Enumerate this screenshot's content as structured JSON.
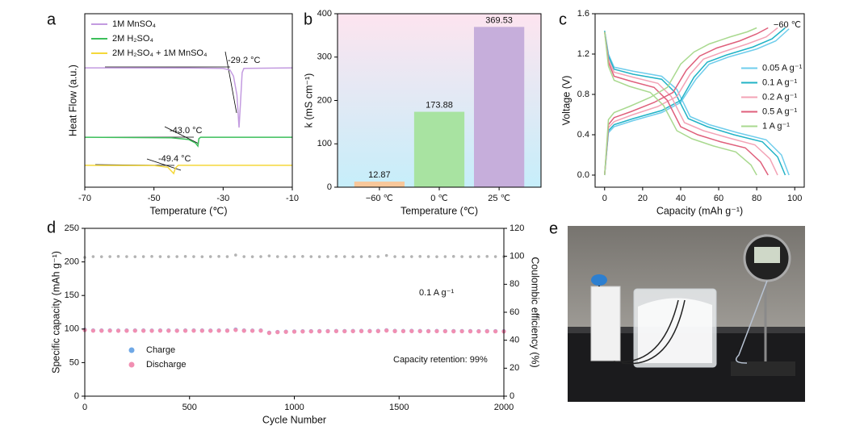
{
  "chart_data": [
    {
      "panel": "a",
      "type": "line",
      "xlabel": "Temperature (℃)",
      "ylabel": "Heat Flow (a.u.)",
      "xlim": [
        -70,
        -10
      ],
      "xticks": [
        -70,
        -50,
        -30,
        -10
      ],
      "ylim": [
        0,
        10
      ],
      "legend": "upper left",
      "annotations": [
        "-29.2 °C",
        "-43.0 °C",
        "-49.4 °C"
      ],
      "series": [
        {
          "name": "1M MnSO₄",
          "color": "#c39be0",
          "x": [
            -70,
            -40,
            -30,
            -28,
            -27,
            -26,
            -25.4,
            -25,
            -24.5,
            -24,
            -10
          ],
          "values": [
            6.88,
            6.87,
            6.85,
            6.75,
            6.4,
            5.3,
            3.44,
            4.8,
            6.6,
            6.85,
            6.88
          ]
        },
        {
          "name": "2M H₂SO₄",
          "color": "#3cbf5a",
          "x": [
            -70,
            -45,
            -40,
            -38,
            -37.3,
            -37,
            -36.5,
            -10
          ],
          "values": [
            2.88,
            2.85,
            2.75,
            2.55,
            2.37,
            2.8,
            2.88,
            2.88
          ]
        },
        {
          "name": "2M H₂SO₄ + 1M MnSO₄",
          "color": "#f5d83a",
          "x": [
            -70,
            -50,
            -46,
            -44.3,
            -43.8,
            -43,
            -10
          ],
          "values": [
            1.26,
            1.25,
            1.15,
            0.79,
            1.1,
            1.26,
            1.26
          ]
        }
      ]
    },
    {
      "panel": "b",
      "type": "bar",
      "xlabel": "Temperature (℃)",
      "ylabel": "k (mS cm⁻¹)",
      "categories": [
        "−60 ℃",
        "0 ℃",
        "25 ℃"
      ],
      "values": [
        12.87,
        173.88,
        369.53
      ],
      "colors": [
        "#f8c79a",
        "#a8e3a1",
        "#c6aedb"
      ],
      "ylim": [
        0,
        400
      ],
      "yticks": [
        0,
        100,
        200,
        300,
        400
      ]
    },
    {
      "panel": "c",
      "type": "line",
      "xlabel": "Capacity (mAh g⁻¹)",
      "ylabel": "Voltage (V)",
      "xlim": [
        -5,
        105
      ],
      "xticks": [
        0,
        20,
        40,
        60,
        80,
        100
      ],
      "ylim": [
        -0.12,
        1.6
      ],
      "yticks": [
        {
          "value": 0,
          "label": "0.0"
        },
        0.4,
        0.8,
        1.2,
        1.6
      ],
      "legend": "center right",
      "annotations": [
        "−60 ℃"
      ],
      "series": [
        {
          "name": "0.05 A g⁻¹",
          "color": "#6fcdec",
          "x": [
            0,
            2,
            5,
            15,
            30,
            40,
            48,
            55,
            65,
            80,
            90,
            97
          ],
          "values": [
            0.0,
            0.42,
            0.48,
            0.54,
            0.62,
            0.72,
            0.95,
            1.1,
            1.17,
            1.25,
            1.33,
            1.45
          ],
          "discharge": {
            "x": [
              0,
              2,
              5,
              15,
              30,
              38,
              45,
              55,
              70,
              85,
              93,
              97
            ],
            "values": [
              1.43,
              1.2,
              1.07,
              1.03,
              0.98,
              0.85,
              0.58,
              0.5,
              0.42,
              0.35,
              0.2,
              0.0
            ]
          }
        },
        {
          "name": "0.1 A g⁻¹",
          "color": "#21b3c6",
          "x": [
            0,
            2,
            5,
            15,
            30,
            40,
            47,
            54,
            64,
            78,
            88,
            95
          ],
          "values": [
            0.0,
            0.44,
            0.5,
            0.56,
            0.64,
            0.74,
            0.97,
            1.12,
            1.19,
            1.27,
            1.35,
            1.46
          ],
          "discharge": {
            "x": [
              0,
              2,
              5,
              15,
              30,
              37,
              44,
              54,
              68,
              83,
              91,
              95
            ],
            "values": [
              1.43,
              1.18,
              1.05,
              1.0,
              0.95,
              0.82,
              0.56,
              0.48,
              0.4,
              0.33,
              0.18,
              0.0
            ]
          }
        },
        {
          "name": "0.2 A g⁻¹",
          "color": "#f3a3b6",
          "x": [
            0,
            2,
            5,
            15,
            28,
            38,
            45,
            52,
            62,
            75,
            85,
            91
          ],
          "values": [
            0.0,
            0.47,
            0.53,
            0.6,
            0.68,
            0.78,
            1.0,
            1.15,
            1.22,
            1.3,
            1.37,
            1.46
          ],
          "discharge": {
            "x": [
              0,
              2,
              5,
              15,
              28,
              35,
              42,
              52,
              65,
              79,
              87,
              91
            ],
            "values": [
              1.42,
              1.15,
              1.02,
              0.97,
              0.91,
              0.78,
              0.52,
              0.44,
              0.37,
              0.3,
              0.16,
              0.0
            ]
          }
        },
        {
          "name": "0.5 A g⁻¹",
          "color": "#df5f7b",
          "x": [
            0,
            2,
            5,
            14,
            26,
            36,
            43,
            50,
            59,
            71,
            80,
            86
          ],
          "values": [
            0.0,
            0.5,
            0.57,
            0.63,
            0.72,
            0.82,
            1.04,
            1.18,
            1.26,
            1.33,
            1.4,
            1.46
          ],
          "discharge": {
            "x": [
              0,
              2,
              5,
              14,
              26,
              33,
              40,
              49,
              61,
              74,
              82,
              86
            ],
            "values": [
              1.42,
              1.12,
              0.98,
              0.93,
              0.87,
              0.74,
              0.48,
              0.4,
              0.33,
              0.27,
              0.13,
              0.0
            ]
          }
        },
        {
          "name": "1 A g⁻¹",
          "color": "#a9d98f",
          "x": [
            0,
            2,
            5,
            13,
            24,
            33,
            40,
            47,
            55,
            66,
            75,
            80
          ],
          "values": [
            0.0,
            0.55,
            0.62,
            0.68,
            0.77,
            0.87,
            1.1,
            1.22,
            1.3,
            1.37,
            1.42,
            1.46
          ],
          "discharge": {
            "x": [
              0,
              2,
              5,
              13,
              24,
              31,
              38,
              46,
              57,
              69,
              77,
              80
            ],
            "values": [
              1.42,
              1.08,
              0.94,
              0.88,
              0.82,
              0.69,
              0.44,
              0.36,
              0.29,
              0.23,
              0.1,
              0.0
            ]
          }
        }
      ]
    },
    {
      "panel": "d",
      "type": "scatter",
      "xlabel": "Cycle Number",
      "ylabel": "Specific capacity (mAh g⁻¹)",
      "y2label": "Coulombic efficiency (%)",
      "xlim": [
        0,
        2000
      ],
      "xticks": [
        0,
        500,
        1000,
        1500,
        2000
      ],
      "ylim": [
        0,
        250
      ],
      "yticks": [
        0,
        50,
        100,
        150,
        200,
        250
      ],
      "y2lim": [
        0,
        120
      ],
      "y2ticks": [
        0,
        20,
        40,
        60,
        80,
        100,
        120
      ],
      "legend": "lower left",
      "annotations": [
        "0.1 A g⁻¹",
        "Capacity retention: 99%"
      ],
      "x": [
        0,
        40,
        80,
        120,
        160,
        200,
        240,
        280,
        320,
        360,
        400,
        440,
        480,
        520,
        560,
        600,
        640,
        680,
        720,
        760,
        800,
        840,
        880,
        920,
        960,
        1000,
        1040,
        1080,
        1120,
        1160,
        1200,
        1240,
        1280,
        1320,
        1360,
        1400,
        1440,
        1480,
        1520,
        1560,
        1600,
        1640,
        1680,
        1720,
        1760,
        1800,
        1840,
        1880,
        1920,
        1960,
        2000
      ],
      "series": [
        {
          "name": "Charge",
          "color": "#6fa8e6",
          "values": [
            98.9,
            97.9,
            97.8,
            97.9,
            97.7,
            97.8,
            97.9,
            97.8,
            97.7,
            97.9,
            97.8,
            97.7,
            97.8,
            97.9,
            97.8,
            97.7,
            97.9,
            97.8,
            99.2,
            97.8,
            97.7,
            97.9,
            94.6,
            95.6,
            96.1,
            96.4,
            96.7,
            96.8,
            96.9,
            97.0,
            97.1,
            97.0,
            97.1,
            97.2,
            97.1,
            97.2,
            98.2,
            97.2,
            97.1,
            97.2,
            97.1,
            97.0,
            97.1,
            97.0,
            96.9,
            97.0,
            96.9,
            96.8,
            96.9,
            96.8,
            96.7
          ]
        },
        {
          "name": "Discharge",
          "color": "#f18fb2",
          "values": [
            98.5,
            97.6,
            97.5,
            97.6,
            97.4,
            97.5,
            97.6,
            97.5,
            97.4,
            97.6,
            97.5,
            97.4,
            97.5,
            97.6,
            97.5,
            97.4,
            97.6,
            97.5,
            98.6,
            97.5,
            97.4,
            97.6,
            94.2,
            95.3,
            95.8,
            96.1,
            96.4,
            96.5,
            96.6,
            96.7,
            96.8,
            96.7,
            96.8,
            96.9,
            96.8,
            96.9,
            97.8,
            96.9,
            96.8,
            96.9,
            96.8,
            96.7,
            96.8,
            96.7,
            96.6,
            96.7,
            96.6,
            96.5,
            96.6,
            96.5,
            96.4
          ]
        },
        {
          "color": "#b3b3b3",
          "axis": "y2",
          "values": [
            99.2,
            99.8,
            99.7,
            99.8,
            99.9,
            99.8,
            99.7,
            99.8,
            99.9,
            99.8,
            99.7,
            99.8,
            99.9,
            99.8,
            99.7,
            99.8,
            99.9,
            99.8,
            100.9,
            99.8,
            99.7,
            99.8,
            100.3,
            99.8,
            99.7,
            99.8,
            99.9,
            99.8,
            99.7,
            99.8,
            99.9,
            99.8,
            99.7,
            99.8,
            99.9,
            99.8,
            100.6,
            99.8,
            99.7,
            99.8,
            99.9,
            99.8,
            99.7,
            99.8,
            99.9,
            99.8,
            99.7,
            99.8,
            99.9,
            99.8,
            99.8
          ]
        }
      ]
    }
  ],
  "photo": {
    "panel": "e"
  }
}
